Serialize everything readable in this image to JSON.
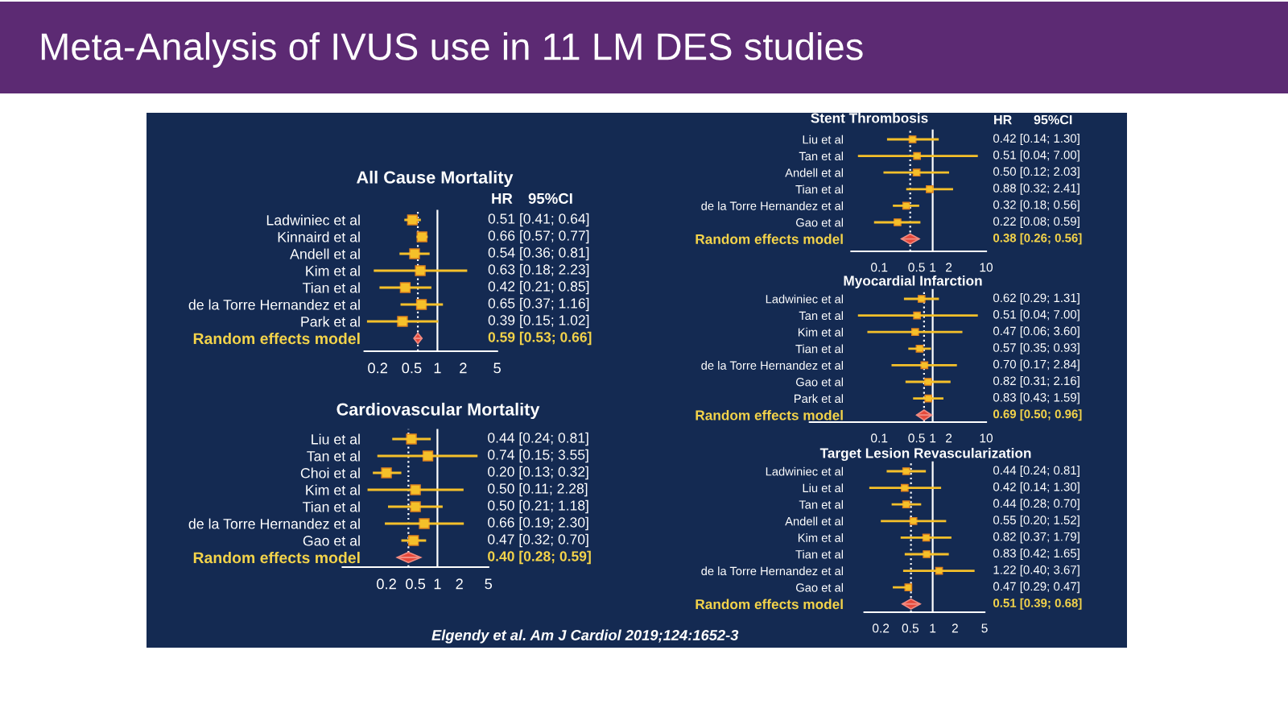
{
  "chart_data": [
    {
      "type": "other",
      "title": "Meta-Analysis of IVUS use in 11 LM DES studies",
      "annotations": [
        "Elgendy et al. Am J Cardiol 2019;124:1652-3"
      ]
    },
    {
      "type": "scatter",
      "orientation": "horizontal",
      "log": "x",
      "title": "All Cause Mortality",
      "annotations": [
        "HR",
        "95%CI"
      ],
      "categories": [
        "Ladwiniec et al",
        "Kinnaird et al",
        "Andell et al",
        "Kim et al",
        "Tian et al",
        "de la Torre Hernandez et al",
        "Park et al",
        "Random effects model"
      ],
      "series": [
        {
          "colors": [
            "#f5c02a",
            "#f5c02a",
            "#f5c02a",
            "#f5c02a",
            "#f5c02a",
            "#f5c02a",
            "#f5c02a",
            "#e5483a"
          ],
          "marker": [
            "square",
            "square",
            "square",
            "square",
            "square",
            "square",
            "square",
            "diamond"
          ],
          "values": [
            0.51,
            0.66,
            0.54,
            0.63,
            0.42,
            0.65,
            0.39,
            0.59
          ],
          "errors": [
            [
              0.41,
              0.64
            ],
            [
              0.57,
              0.77
            ],
            [
              0.36,
              0.81
            ],
            [
              0.18,
              2.23
            ],
            [
              0.21,
              0.85
            ],
            [
              0.37,
              1.16
            ],
            [
              0.15,
              1.02
            ],
            [
              0.53,
              0.66
            ]
          ],
          "value_labels": [
            "0.51 [0.41; 0.64]",
            "0.66 [0.57; 0.77]",
            "0.54 [0.36; 0.81]",
            "0.63 [0.18; 2.23]",
            "0.42 [0.21; 0.85]",
            "0.65 [0.37; 1.16]",
            "0.39 [0.15; 1.02]",
            "0.59 [0.53; 0.66]"
          ]
        }
      ],
      "xlim": [
        0.14,
        5
      ],
      "xticks": [
        0.2,
        0.5,
        1,
        2,
        5
      ],
      "ref_lines": [
        {
          "axis": "x",
          "value": 1,
          "color": "#ffffff",
          "line_style": "solid"
        },
        {
          "axis": "x",
          "value": 0.59,
          "color": "#ffffff",
          "line_style": "dotted"
        }
      ]
    },
    {
      "type": "scatter",
      "orientation": "horizontal",
      "log": "x",
      "title": "Cardiovascular Mortality",
      "categories": [
        "Liu et al",
        "Tan et al",
        "Choi et al",
        "Kim et al",
        "Tian et al",
        "de la Torre Hernandez et al",
        "Gao et al",
        "Random effects model"
      ],
      "series": [
        {
          "colors": [
            "#f5c02a",
            "#f5c02a",
            "#f5c02a",
            "#f5c02a",
            "#f5c02a",
            "#f5c02a",
            "#f5c02a",
            "#e5483a"
          ],
          "marker": [
            "square",
            "square",
            "square",
            "square",
            "square",
            "square",
            "square",
            "diamond"
          ],
          "values": [
            0.44,
            0.74,
            0.2,
            0.5,
            0.5,
            0.66,
            0.47,
            0.4
          ],
          "errors": [
            [
              0.24,
              0.81
            ],
            [
              0.15,
              3.55
            ],
            [
              0.13,
              0.32
            ],
            [
              0.11,
              2.28
            ],
            [
              0.21,
              1.18
            ],
            [
              0.19,
              2.3
            ],
            [
              0.32,
              0.7
            ],
            [
              0.28,
              0.59
            ]
          ],
          "value_labels": [
            "0.44 [0.24; 0.81]",
            "0.74 [0.15; 3.55]",
            "0.20 [0.13; 0.32]",
            "0.50 [0.11; 2.28]",
            "0.50 [0.21; 1.18]",
            "0.66 [0.19; 2.30]",
            "0.47 [0.32; 0.70]",
            "0.40 [0.28; 0.59]"
          ]
        }
      ],
      "xlim": [
        0.05,
        5
      ],
      "xticks": [
        0.2,
        0.5,
        1,
        2,
        5
      ],
      "ref_lines": [
        {
          "axis": "x",
          "value": 1,
          "color": "#ffffff",
          "line_style": "solid"
        },
        {
          "axis": "x",
          "value": 0.4,
          "color": "#ffffff",
          "line_style": "dotted"
        }
      ]
    },
    {
      "type": "scatter",
      "orientation": "horizontal",
      "log": "x",
      "title": "Stent Thrombosis",
      "annotations": [
        "HR",
        "95%CI"
      ],
      "categories": [
        "Liu et al",
        "Tan et al",
        "Andell et al",
        "Tian et al",
        "de la Torre Hernandez et al",
        "Gao et al",
        "Random effects model"
      ],
      "series": [
        {
          "colors": [
            "#f5c02a",
            "#f5c02a",
            "#f5c02a",
            "#f5c02a",
            "#f5c02a",
            "#f5c02a",
            "#e5483a"
          ],
          "marker": [
            "square",
            "square",
            "square",
            "square",
            "square",
            "square",
            "diamond"
          ],
          "values": [
            0.42,
            0.51,
            0.5,
            0.88,
            0.32,
            0.22,
            0.38
          ],
          "errors": [
            [
              0.14,
              1.3
            ],
            [
              0.04,
              7.0
            ],
            [
              0.12,
              2.03
            ],
            [
              0.32,
              2.41
            ],
            [
              0.18,
              0.56
            ],
            [
              0.08,
              0.59
            ],
            [
              0.26,
              0.56
            ]
          ],
          "value_labels": [
            "0.42 [0.14; 1.30]",
            "0.51 [0.04; 7.00]",
            "0.50 [0.12; 2.03]",
            "0.88 [0.32; 2.41]",
            "0.32 [0.18; 0.56]",
            "0.22 [0.08; 0.59]",
            "0.38 [0.26; 0.56]"
          ]
        }
      ],
      "xlim": [
        0.03,
        10
      ],
      "xticks": [
        0.1,
        0.5,
        1,
        2,
        10
      ],
      "ref_lines": [
        {
          "axis": "x",
          "value": 1,
          "color": "#ffffff",
          "line_style": "solid"
        },
        {
          "axis": "x",
          "value": 0.38,
          "color": "#ffffff",
          "line_style": "dotted"
        }
      ]
    },
    {
      "type": "scatter",
      "orientation": "horizontal",
      "log": "x",
      "title": "Myocardial Infarction",
      "categories": [
        "Ladwiniec et al",
        "Tan et al",
        "Kim et al",
        "Tian et al",
        "de la Torre Hernandez et al",
        "Gao et al",
        "Park et al",
        "Random effects model"
      ],
      "series": [
        {
          "colors": [
            "#f5c02a",
            "#f5c02a",
            "#f5c02a",
            "#f5c02a",
            "#f5c02a",
            "#f5c02a",
            "#f5c02a",
            "#e5483a"
          ],
          "marker": [
            "square",
            "square",
            "square",
            "square",
            "square",
            "square",
            "square",
            "diamond"
          ],
          "values": [
            0.62,
            0.51,
            0.47,
            0.57,
            0.7,
            0.82,
            0.83,
            0.69
          ],
          "errors": [
            [
              0.29,
              1.31
            ],
            [
              0.04,
              7.0
            ],
            [
              0.06,
              3.6
            ],
            [
              0.35,
              0.93
            ],
            [
              0.17,
              2.84
            ],
            [
              0.31,
              2.16
            ],
            [
              0.43,
              1.59
            ],
            [
              0.5,
              0.96
            ]
          ],
          "value_labels": [
            "0.62 [0.29; 1.31]",
            "0.51 [0.04; 7.00]",
            "0.47 [0.06; 3.60]",
            "0.57 [0.35; 0.93]",
            "0.70 [0.17; 2.84]",
            "0.82 [0.31; 2.16]",
            "0.83 [0.43; 1.59]",
            "0.69 [0.50; 0.96]"
          ]
        }
      ],
      "xlim": [
        0.005,
        10
      ],
      "xticks": [
        0.1,
        0.5,
        1,
        2,
        10
      ],
      "ref_lines": [
        {
          "axis": "x",
          "value": 1,
          "color": "#ffffff",
          "line_style": "solid"
        },
        {
          "axis": "x",
          "value": 0.69,
          "color": "#ffffff",
          "line_style": "dotted"
        }
      ]
    },
    {
      "type": "scatter",
      "orientation": "horizontal",
      "log": "x",
      "title": "Target Lesion Revascularization",
      "categories": [
        "Ladwiniec et al",
        "Liu et al",
        "Tan et al",
        "Andell et al",
        "Kim et al",
        "Tian et al",
        "de la Torre Hernandez et al",
        "Gao et al",
        "Random effects model"
      ],
      "series": [
        {
          "colors": [
            "#f5c02a",
            "#f5c02a",
            "#f5c02a",
            "#f5c02a",
            "#f5c02a",
            "#f5c02a",
            "#f5c02a",
            "#f5c02a",
            "#e5483a"
          ],
          "marker": [
            "square",
            "square",
            "square",
            "square",
            "square",
            "square",
            "square",
            "square",
            "diamond"
          ],
          "values": [
            0.44,
            0.42,
            0.44,
            0.55,
            0.82,
            0.83,
            1.22,
            0.47,
            0.51
          ],
          "errors": [
            [
              0.24,
              0.81
            ],
            [
              0.14,
              1.3
            ],
            [
              0.28,
              0.7
            ],
            [
              0.2,
              1.52
            ],
            [
              0.37,
              1.79
            ],
            [
              0.42,
              1.65
            ],
            [
              0.4,
              3.67
            ],
            [
              0.29,
              0.47
            ],
            [
              0.39,
              0.68
            ]
          ],
          "value_labels": [
            "0.44 [0.24; 0.81]",
            "0.42 [0.14; 1.30]",
            "0.44 [0.28; 0.70]",
            "0.55 [0.20; 1.52]",
            "0.82 [0.37; 1.79]",
            "0.83 [0.42; 1.65]",
            "1.22 [0.40; 3.67]",
            "0.47 [0.29; 0.47]",
            "0.51 [0.39; 0.68]"
          ]
        }
      ],
      "xlim": [
        0.12,
        5
      ],
      "xticks": [
        0.2,
        0.5,
        1,
        2,
        5
      ],
      "ref_lines": [
        {
          "axis": "x",
          "value": 1,
          "color": "#ffffff",
          "line_style": "solid"
        },
        {
          "axis": "x",
          "value": 0.51,
          "color": "#ffffff",
          "line_style": "dotted"
        }
      ]
    }
  ]
}
